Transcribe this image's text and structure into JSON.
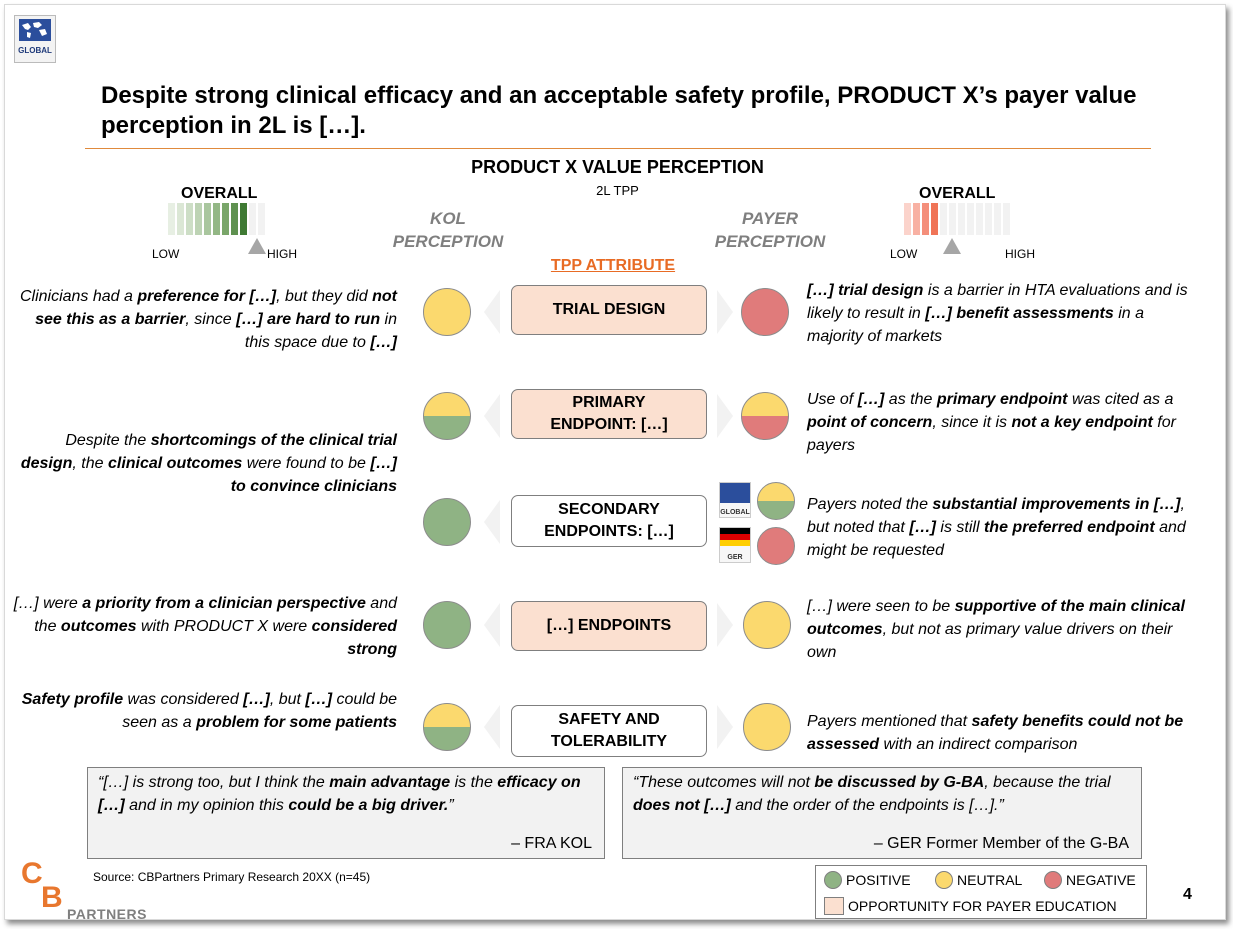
{
  "header": {
    "logo_label": "GLOBAL",
    "title": "Despite strong clinical efficacy and an acceptable safety profile, PRODUCT X’s payer value perception in 2L is […]."
  },
  "center": {
    "title": "PRODUCT X VALUE PERCEPTION",
    "subtitle": "2L TPP",
    "tpp_attribute": "TPP ATTRIBUTE"
  },
  "kol_scale": {
    "overall": "OVERALL",
    "low": "LOW",
    "high": "HIGH",
    "level_fraction": 0.8,
    "perception_label_1": "KOL",
    "perception_label_2": "PERCEPTION"
  },
  "payer_scale": {
    "overall": "OVERALL",
    "low": "LOW",
    "high": "HIGH",
    "level_fraction": 0.4,
    "perception_label_1": "PAYER",
    "perception_label_2": "PERCEPTION"
  },
  "rows": [
    {
      "attribute_1": "TRIAL DESIGN",
      "attribute_2": "",
      "kol_rating": "neutral",
      "payer_rating": "negative",
      "kol_text": [
        "Clinicians had a ",
        "preference for […]",
        ", but they did ",
        "not see this as a barrier",
        ", since ",
        "[…] are hard to run",
        " in this space due to ",
        "[…]"
      ],
      "payer_text": [
        "[…] trial design",
        " is a barrier in HTA evaluations and is likely to result in ",
        "[…] benefit assessments",
        " in a majority of markets"
      ]
    },
    {
      "attribute_1": "PRIMARY",
      "attribute_2": "ENDPOINT: […]",
      "kol_rating": "neutral/positive",
      "payer_rating": "neutral/negative",
      "kol_text": [
        "Despite the ",
        "shortcomings of the clinical trial design",
        ", the ",
        "clinical outcomes",
        " were found to be ",
        "[…] to convince clinicians",
        "",
        ""
      ],
      "payer_text": [
        "Use of ",
        "[…]",
        " as the ",
        "primary endpoint",
        " was cited as a ",
        "point of concern",
        ", since it is ",
        "not a key endpoint",
        " for payers"
      ]
    },
    {
      "attribute_1": "SECONDARY",
      "attribute_2": "ENDPOINTS: […]",
      "kol_rating": "positive",
      "payer_rating_global": "neutral/positive",
      "payer_rating_ger": "negative",
      "flag_global": "GLOBAL",
      "flag_ger": "GER",
      "payer_text": [
        "Payers noted the ",
        "substantial improvements in […]",
        ", but noted that ",
        "[…]",
        " is still ",
        "the preferred endpoint",
        " and might be requested"
      ]
    },
    {
      "attribute_1": "[…] ENDPOINTS",
      "attribute_2": "",
      "kol_rating": "positive",
      "payer_rating": "neutral",
      "kol_text": [
        "[…] were ",
        "a priority from a clinician perspective",
        " and the ",
        "outcomes",
        " with PRODUCT X were ",
        "considered strong"
      ],
      "payer_text": [
        "[…] were seen to be ",
        "supportive of the main clinical outcomes",
        ", but not as primary value drivers on their own"
      ]
    },
    {
      "attribute_1": "SAFETY AND",
      "attribute_2": "TOLERABILITY",
      "kol_rating": "neutral/positive",
      "payer_rating": "neutral",
      "kol_text": [
        "Safety profile",
        " was considered ",
        "[…]",
        ", but ",
        "[…]",
        " could be seen as a ",
        "problem for some patients"
      ],
      "payer_text": [
        "Payers mentioned that ",
        "safety benefits could not be assessed",
        " with an indirect comparison"
      ]
    }
  ],
  "quotes": [
    {
      "parts": [
        "“[…] is strong too, but I think the ",
        "main advantage",
        " is the ",
        "efficacy on […]",
        " and in my opinion this ",
        "could be a big driver.",
        "”"
      ],
      "attribution": "– FRA KOL"
    },
    {
      "parts": [
        "“These outcomes will not ",
        "be discussed by G-BA",
        ", because the trial ",
        "does not […]",
        " and the order of the endpoints is […].”"
      ],
      "attribution": "– GER Former Member of the G-BA"
    }
  ],
  "footer": {
    "source": "Source: CBPartners Primary Research 20XX (n=45)",
    "logo_c": "C",
    "logo_b": "B",
    "logo_text": "PARTNERS",
    "page_number": "4"
  },
  "legend": {
    "positive": "POSITIVE",
    "neutral": "NEUTRAL",
    "negative": "NEGATIVE",
    "opportunity": "OPPORTUNITY FOR PAYER EDUCATION"
  },
  "colors": {
    "positive": "#8fb384",
    "neutral": "#fbd96e",
    "negative": "#e07b7b",
    "opportunity": "#fbe0d0",
    "accent": "#e86b24"
  }
}
